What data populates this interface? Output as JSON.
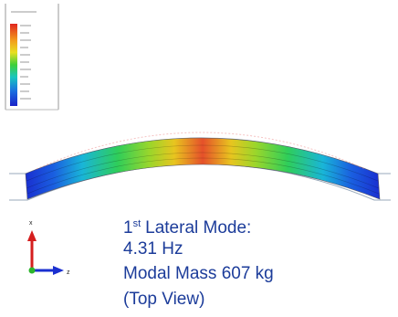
{
  "caption": {
    "mode_number": "1",
    "ordinal_suffix": "st",
    "mode_label": "Lateral Mode:",
    "frequency": "4.31 Hz",
    "modal_mass": "Modal Mass 607 kg",
    "view": "(Top View)"
  },
  "triad": {
    "up": "x",
    "right": "z"
  }
}
